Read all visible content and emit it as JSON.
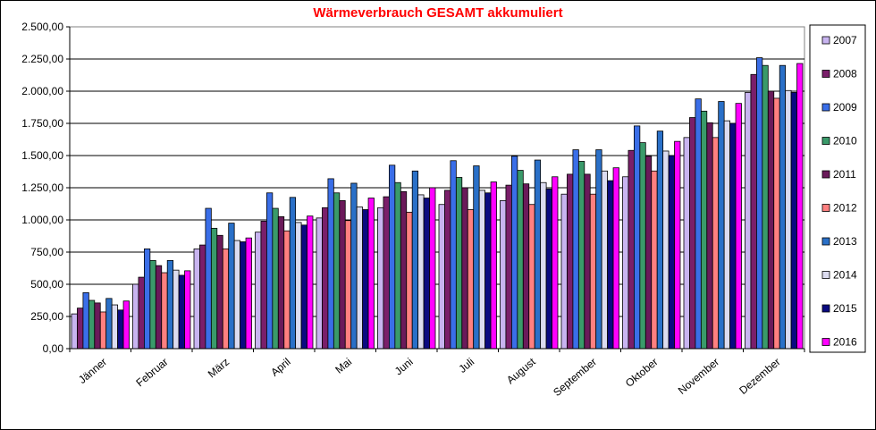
{
  "chart_data": {
    "type": "bar",
    "title": "Wärmeverbrauch GESAMT akkumuliert",
    "xlabel": "",
    "ylabel": "",
    "ylim": [
      0,
      2500
    ],
    "yticks": [
      "0,00",
      "250,00",
      "500,00",
      "750,00",
      "1.000,00",
      "1.250,00",
      "1.500,00",
      "1.750,00",
      "2.000,00",
      "2.250,00",
      "2.500,00"
    ],
    "categories": [
      "Jänner",
      "Februar",
      "März",
      "April",
      "Mai",
      "Juni",
      "Juli",
      "August",
      "September",
      "Oktober",
      "November",
      "Dezember"
    ],
    "grid": true,
    "legend_position": "right",
    "series": [
      {
        "name": "2007",
        "color": "#c8b4f0",
        "values": [
          270,
          500,
          775,
          905,
          1015,
          1095,
          1120,
          1150,
          1200,
          1335,
          1640,
          1990
        ]
      },
      {
        "name": "2008",
        "color": "#7a1f6a",
        "values": [
          315,
          555,
          805,
          990,
          1095,
          1180,
          1230,
          1270,
          1355,
          1540,
          1795,
          2130
        ]
      },
      {
        "name": "2009",
        "color": "#3a6ee8",
        "values": [
          435,
          775,
          1090,
          1210,
          1320,
          1425,
          1460,
          1495,
          1545,
          1730,
          1940,
          2260
        ]
      },
      {
        "name": "2010",
        "color": "#3a9a6a",
        "values": [
          375,
          685,
          935,
          1090,
          1210,
          1290,
          1330,
          1385,
          1455,
          1600,
          1845,
          2200
        ]
      },
      {
        "name": "2011",
        "color": "#6a1a5a",
        "values": [
          355,
          645,
          880,
          1025,
          1150,
          1220,
          1250,
          1280,
          1355,
          1495,
          1755,
          2000
        ]
      },
      {
        "name": "2012",
        "color": "#ff8080",
        "values": [
          285,
          590,
          775,
          915,
          995,
          1060,
          1080,
          1120,
          1200,
          1380,
          1640,
          1945
        ]
      },
      {
        "name": "2013",
        "color": "#2a70c8",
        "values": [
          390,
          685,
          975,
          1175,
          1285,
          1380,
          1420,
          1465,
          1545,
          1690,
          1920,
          2200
        ]
      },
      {
        "name": "2014",
        "color": "#dcdcf0",
        "values": [
          340,
          610,
          840,
          980,
          1100,
          1195,
          1230,
          1290,
          1380,
          1535,
          1770,
          2005
        ]
      },
      {
        "name": "2015",
        "color": "#0a0a80",
        "values": [
          300,
          570,
          830,
          960,
          1080,
          1170,
          1210,
          1240,
          1305,
          1500,
          1750,
          1990
        ]
      },
      {
        "name": "2016",
        "color": "#ff00ff",
        "values": [
          370,
          605,
          860,
          1030,
          1170,
          1250,
          1295,
          1335,
          1405,
          1610,
          1905,
          2215
        ]
      }
    ]
  }
}
